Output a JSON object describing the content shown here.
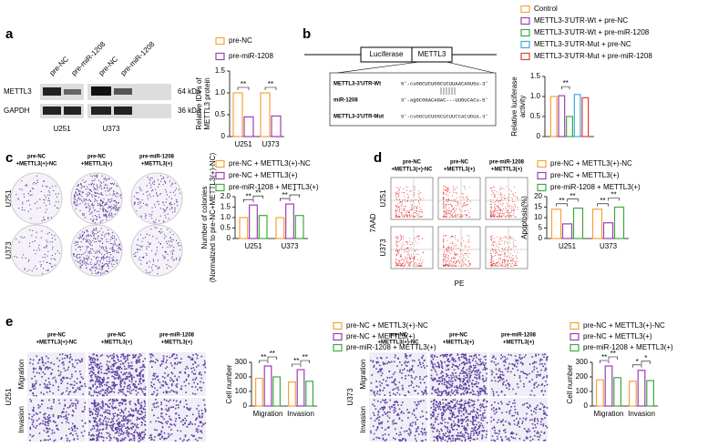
{
  "figure": {
    "panel_labels": [
      "a",
      "b",
      "c",
      "d",
      "e"
    ],
    "a": {
      "lanes": [
        "pre-NC",
        "pre-miR-1208",
        "pre-NC",
        "pre-miR-1208"
      ],
      "proteins": [
        "METTL3",
        "GAPDH"
      ],
      "sizes": [
        "64 kDa",
        "36 kDa"
      ],
      "cells": [
        "U251",
        "U373"
      ]
    },
    "b": {
      "boxes": [
        "Luciferase",
        "METTL3"
      ],
      "seq_labels": [
        "METTL3-3'UTR-Wt",
        "miR-1208",
        "METTL3-3'UTR-Mut"
      ],
      "seqs": [
        "5'-cuGGCUCUGGCUCUUAACAGUGu-3'",
        "3'-agGCGGACAGAC---UUGUCACu-5'",
        "5'-cuGGCUCUGGCUCUUCCACUGUa-3'"
      ]
    },
    "c": {
      "conditions": [
        [
          "pre-NC",
          "+METTL3(+)-NC"
        ],
        [
          "pre-NC",
          "+METTL3(+)"
        ],
        [
          "pre-miR-1208",
          "+METTL3(+)"
        ]
      ],
      "rows": [
        "U251",
        "U373"
      ]
    },
    "d": {
      "conditions": [
        [
          "pre-NC",
          "+METTL3(+)-NC"
        ],
        [
          "pre-NC",
          "+METTL3(+)"
        ],
        [
          "pre-miR-1208",
          "+METTL3(+)"
        ]
      ],
      "rows": [
        "U251",
        "U373"
      ],
      "y_axis": "7AAD",
      "x_axis": "PE"
    },
    "e": {
      "conditions": [
        [
          "pre-NC",
          "+METTL3(+)-NC"
        ],
        [
          "pre-NC",
          "+METTL3(+)"
        ],
        [
          "pre-miR-1208",
          "+METTL3(+)"
        ]
      ],
      "rows": [
        "Migration",
        "Invasion"
      ],
      "cells": [
        "U251",
        "U373"
      ]
    }
  },
  "chart_data": [
    {
      "type": "bar",
      "ylabel": [
        "Relative IDVs of",
        "METTL3 protein"
      ],
      "categories": [
        "U251",
        "U373"
      ],
      "series": [
        {
          "name": "pre-NC",
          "color": "#f5a33a",
          "values": [
            1.0,
            1.0
          ]
        },
        {
          "name": "pre-miR-1208",
          "color": "#9b3fb5",
          "values": [
            0.45,
            0.47
          ]
        }
      ],
      "ylim": [
        0,
        1.5
      ],
      "yticks": [
        0,
        0.5,
        {
          "value": 1,
          "label": "1.0"
        },
        1.5
      ],
      "significance": [
        [
          "**"
        ],
        [
          "**"
        ]
      ]
    },
    {
      "type": "bar",
      "ylabel": [
        "Relative luciferase",
        "activity"
      ],
      "categories": [
        null
      ],
      "series": [
        {
          "name": "Control",
          "color": "#f5a33a",
          "values": [
            1.0
          ]
        },
        {
          "name": "METTL3-3'UTR-Wt + pre-NC",
          "color": "#9b3fb5",
          "values": [
            1.02
          ]
        },
        {
          "name": "METTL3-3'UTR-Wt + pre-miR-1208",
          "color": "#3caa3c",
          "values": [
            0.5
          ]
        },
        {
          "name": "METTL3-3'UTR-Mut + pre-NC",
          "color": "#3fa9e0",
          "values": [
            1.05
          ]
        },
        {
          "name": "METTL3-3'UTR-Mut + pre-miR-1208",
          "color": "#e0403a",
          "values": [
            0.97
          ]
        }
      ],
      "ylim": [
        0,
        1.5
      ],
      "yticks": [
        0,
        0.5,
        {
          "value": 1,
          "label": "1.0"
        },
        1.5
      ],
      "significance": [
        [
          null,
          "**"
        ]
      ]
    },
    {
      "type": "bar",
      "ylabel": [
        "Number of colonies",
        "(Normalized to pre-NC+METTL3(+)-NC)"
      ],
      "categories": [
        "U251",
        "U373"
      ],
      "series": [
        {
          "name": "pre-NC + METTL3(+)-NC",
          "color": "#f5a33a",
          "values": [
            1.0,
            1.0
          ]
        },
        {
          "name": "pre-NC + METTL3(+)",
          "color": "#9b3fb5",
          "values": [
            1.6,
            1.65
          ]
        },
        {
          "name": "pre-miR-1208 + METTL3(+)",
          "color": "#3caa3c",
          "values": [
            1.1,
            1.1
          ]
        }
      ],
      "ylim": [
        0,
        2
      ],
      "yticks": [
        0,
        0.5,
        {
          "value": 1,
          "label": "1.0"
        },
        1.5,
        {
          "value": 2,
          "label": "2.0"
        }
      ],
      "significance": [
        [
          "**",
          "**"
        ],
        [
          "**",
          "*"
        ]
      ]
    },
    {
      "type": "bar",
      "ylabel": [
        "Apoptosis(%)"
      ],
      "categories": [
        "U251",
        "U373"
      ],
      "series": [
        {
          "name": "pre-NC + METTL3(+)-NC",
          "color": "#f5a33a",
          "values": [
            14,
            14
          ]
        },
        {
          "name": "pre-NC + METTL3(+)",
          "color": "#9b3fb5",
          "values": [
            7,
            7.5
          ]
        },
        {
          "name": "pre-miR-1208 + METTL3(+)",
          "color": "#3caa3c",
          "values": [
            14.5,
            15
          ]
        }
      ],
      "ylim": [
        0,
        20
      ],
      "yticks": [
        0,
        5,
        10,
        15,
        20
      ],
      "significance": [
        [
          "**",
          "**"
        ],
        [
          "**",
          "**"
        ]
      ]
    },
    {
      "type": "bar",
      "ylabel": [
        "Cell number"
      ],
      "categories": [
        "Migration",
        "Invasion"
      ],
      "series": [
        {
          "name": "pre-NC + METTL3(+)-NC",
          "color": "#f5a33a",
          "values": [
            190,
            165
          ]
        },
        {
          "name": "pre-NC + METTL3(+)",
          "color": "#9b3fb5",
          "values": [
            275,
            250
          ]
        },
        {
          "name": "pre-miR-1208 + METTL3(+)",
          "color": "#3caa3c",
          "values": [
            200,
            170
          ]
        }
      ],
      "ylim": [
        0,
        300
      ],
      "yticks": [
        0,
        100,
        200,
        300
      ],
      "significance": [
        [
          "**",
          "**"
        ],
        [
          "**",
          "**"
        ]
      ]
    },
    {
      "type": "bar",
      "ylabel": [
        "Cell number"
      ],
      "categories": [
        "Migration",
        "Invasion"
      ],
      "series": [
        {
          "name": "pre-NC + METTL3(+)-NC",
          "color": "#f5a33a",
          "values": [
            180,
            170
          ]
        },
        {
          "name": "pre-NC + METTL3(+)",
          "color": "#9b3fb5",
          "values": [
            275,
            245
          ]
        },
        {
          "name": "pre-miR-1208 + METTL3(+)",
          "color": "#3caa3c",
          "values": [
            195,
            175
          ]
        }
      ],
      "ylim": [
        0,
        300
      ],
      "yticks": [
        0,
        100,
        200,
        300
      ],
      "significance": [
        [
          "**",
          "**"
        ],
        [
          "*",
          "*"
        ]
      ]
    }
  ]
}
